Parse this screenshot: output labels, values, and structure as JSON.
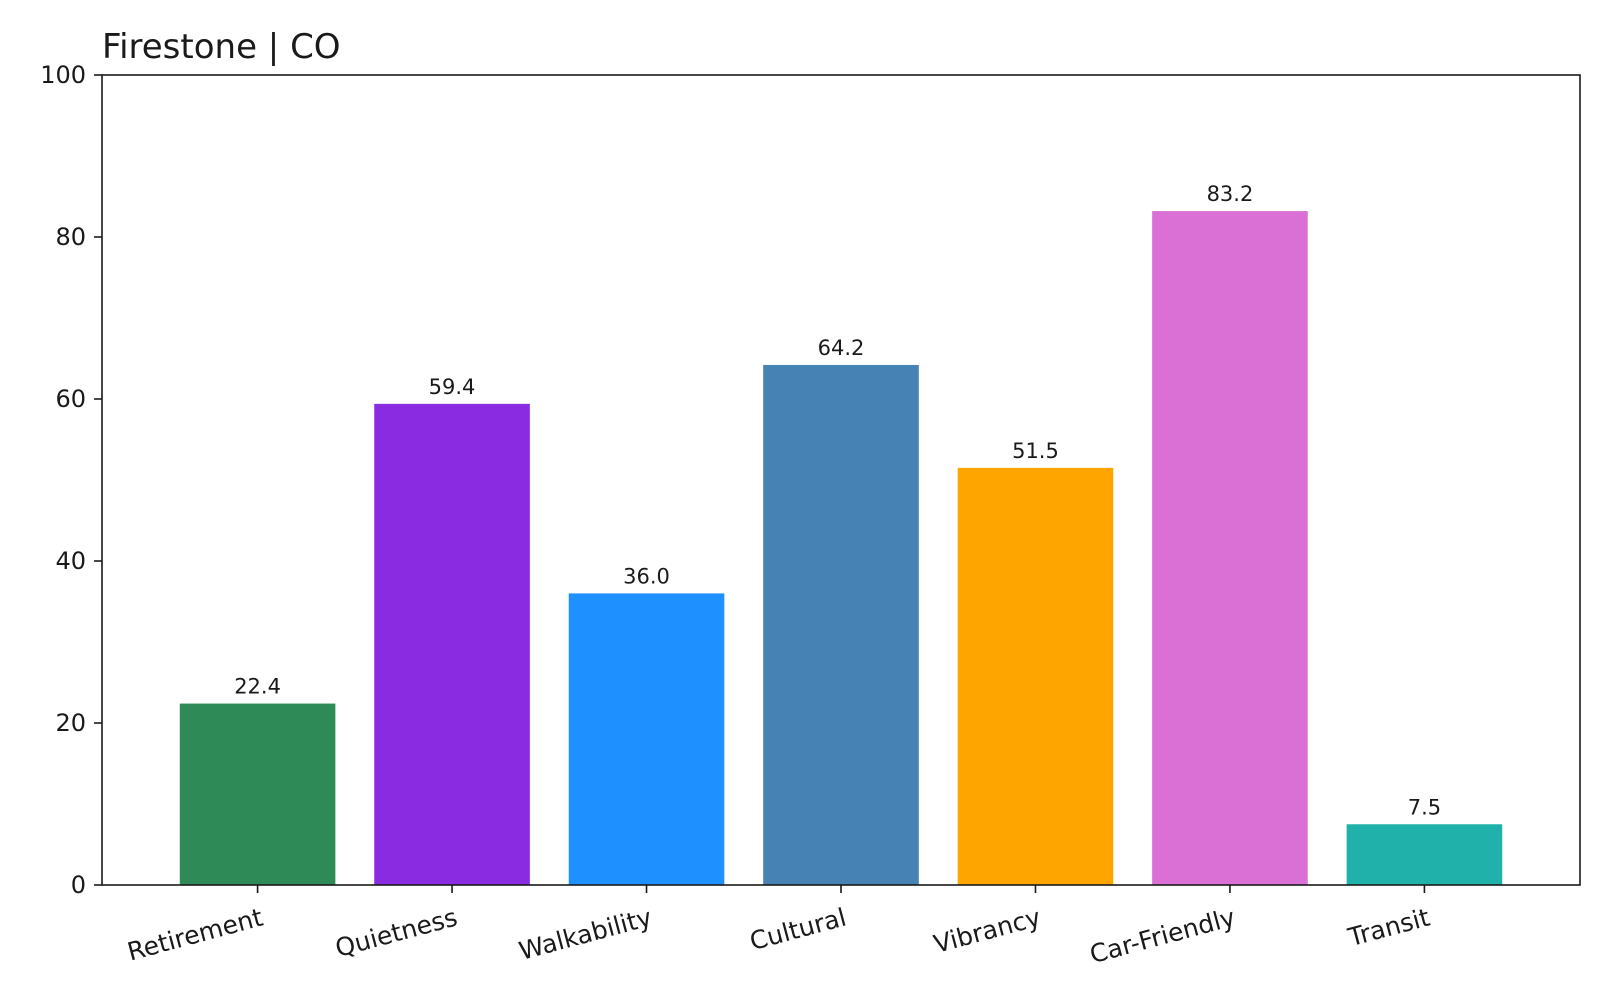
{
  "chart_data": {
    "type": "bar",
    "title": "Firestone | CO",
    "xlabel": "",
    "ylabel": "",
    "ylim": [
      0,
      100
    ],
    "yticks": [
      0,
      20,
      40,
      60,
      80,
      100
    ],
    "grid": false,
    "categories": [
      "Retirement",
      "Quietness",
      "Walkability",
      "Cultural",
      "Vibrancy",
      "Car-Friendly",
      "Transit"
    ],
    "values": [
      22.4,
      59.4,
      36.0,
      64.2,
      51.5,
      83.2,
      7.5
    ],
    "value_labels": [
      "22.4",
      "59.4",
      "36.0",
      "64.2",
      "51.5",
      "83.2",
      "7.5"
    ],
    "colors": [
      "#2e8b57",
      "#8a2be2",
      "#1e90ff",
      "#4682b4",
      "#ffa500",
      "#da70d6",
      "#20b2aa"
    ]
  }
}
